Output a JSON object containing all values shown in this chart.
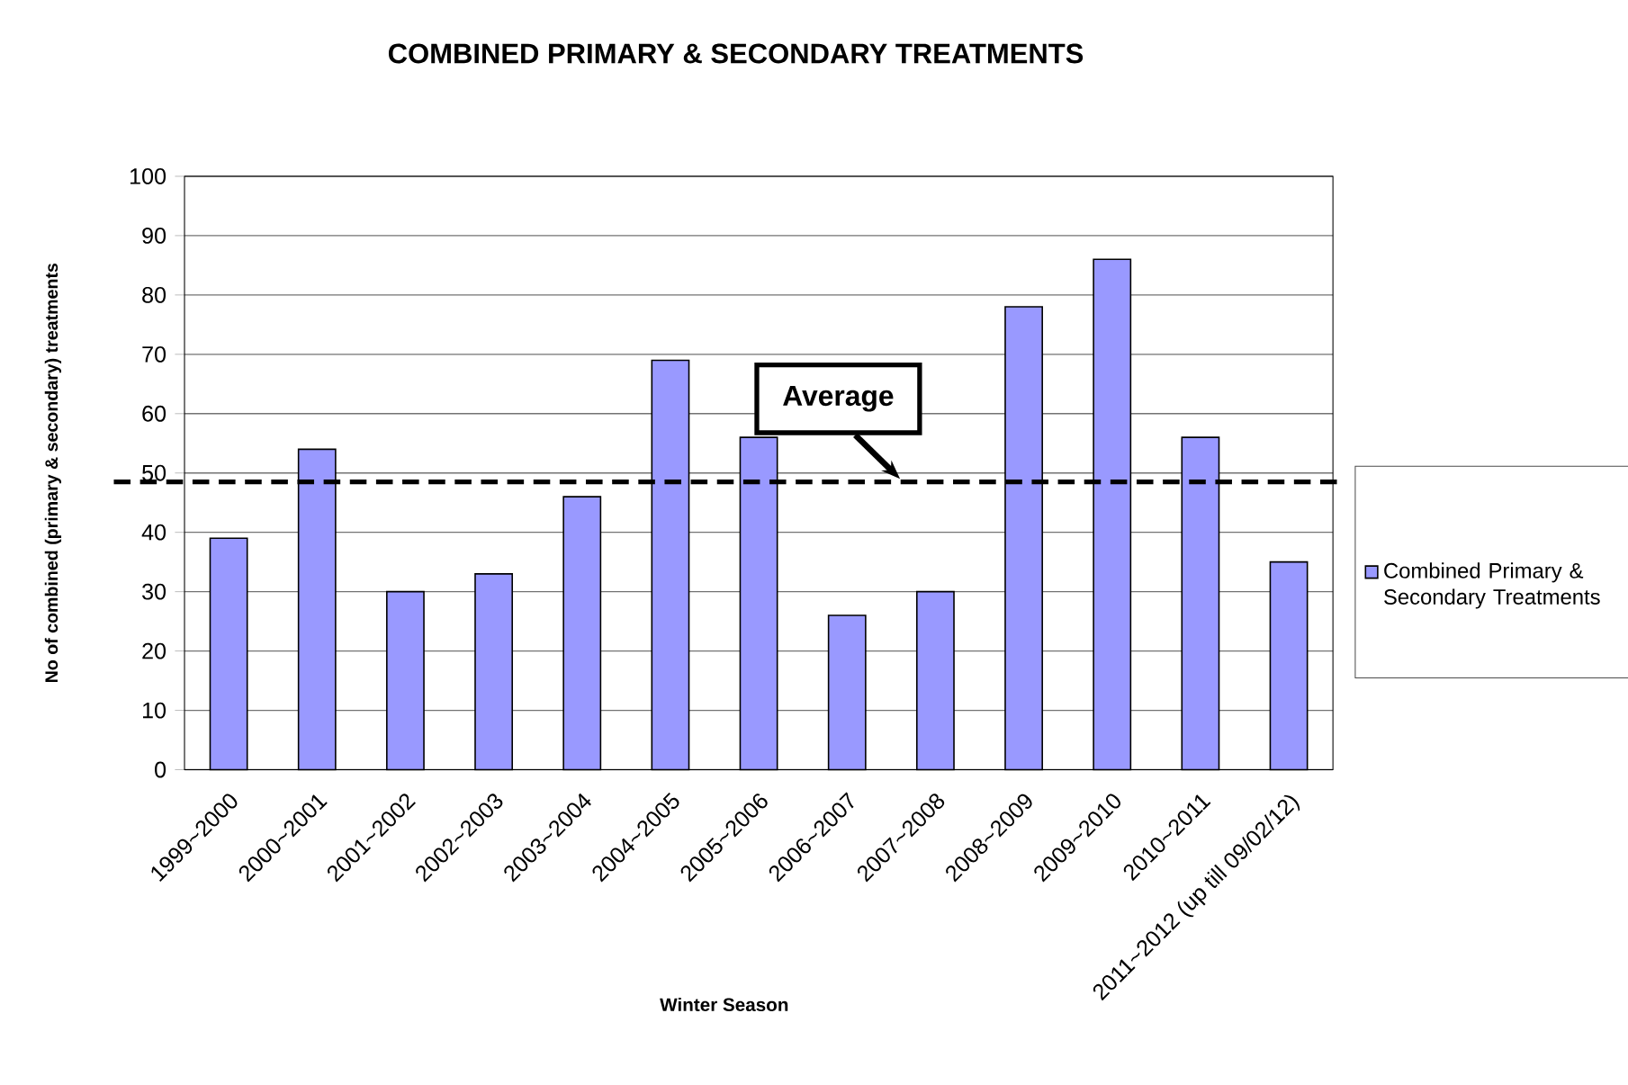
{
  "chart_data": {
    "type": "bar",
    "title": "COMBINED PRIMARY & SECONDARY TREATMENTS",
    "xlabel": "Winter Season",
    "ylabel": "No of combined (primary & secondary) treatments",
    "categories": [
      "1999~2000",
      "2000~2001",
      "2001~2002",
      "2002~2003",
      "2003~2004",
      "2004~2005",
      "2005~2006",
      "2006~2007",
      "2007~2008",
      "2008~2009",
      "2009~2010",
      "2010~2011",
      "2011~2012 (up till 09/02/12)"
    ],
    "series": [
      {
        "name": "Combined Primary & Secondary Treatments",
        "color": "#9999ff",
        "values": [
          39,
          54,
          30,
          33,
          46,
          69,
          56,
          26,
          30,
          78,
          86,
          56,
          35
        ]
      }
    ],
    "ylim": [
      0,
      100
    ],
    "yticks": [
      0,
      10,
      20,
      30,
      40,
      50,
      60,
      70,
      80,
      90,
      100
    ],
    "grid": "y",
    "legend": "right",
    "ref_lines": [
      {
        "axis": "y",
        "value": 48.5,
        "label": "Average",
        "color": "#000000",
        "line_style": "dashed"
      }
    ]
  }
}
